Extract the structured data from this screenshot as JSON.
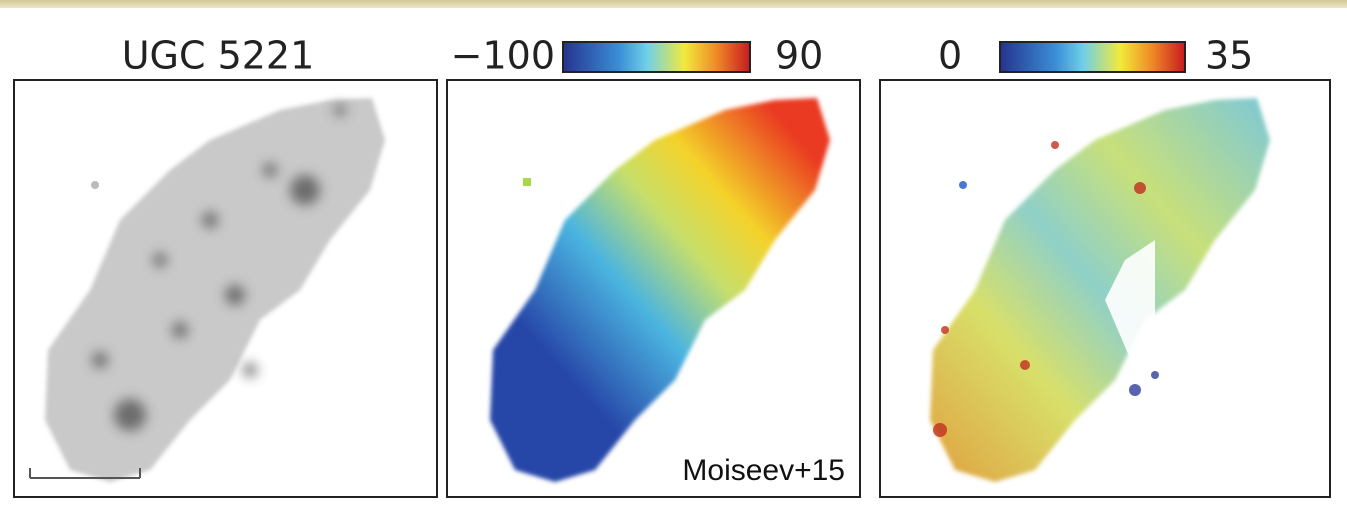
{
  "panels": [
    {
      "title": "UGC 5221"
    },
    {
      "colorbar": {
        "min_label": "−100",
        "max_label": "90"
      },
      "annotation": "Moiseev+15"
    },
    {
      "colorbar": {
        "min_label": "0",
        "max_label": "35"
      }
    }
  ]
}
